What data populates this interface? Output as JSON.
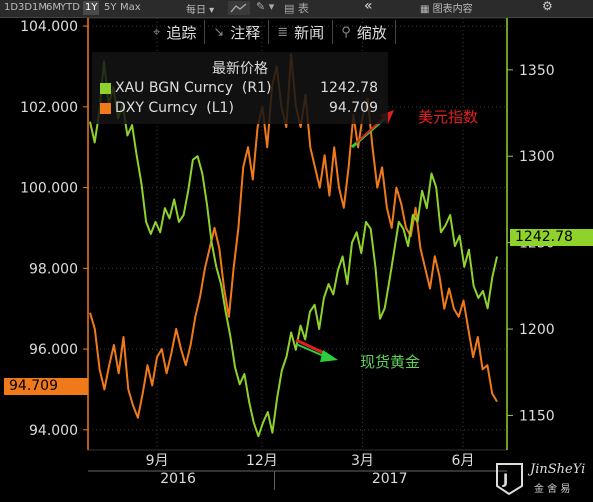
{
  "topbar": {
    "ranges": [
      "1D",
      "3D",
      "1M",
      "6M",
      "YTD",
      "1Y",
      "5Y",
      "Max"
    ],
    "active_range": "1Y",
    "period_label": "每日",
    "chart_label": "表",
    "news_label": "图表内容"
  },
  "toolbar": {
    "items": [
      {
        "icon": "crosshair-icon",
        "glyph": "⌖",
        "label": "追踪"
      },
      {
        "icon": "annotate-icon",
        "glyph": "↘",
        "label": "注释"
      },
      {
        "icon": "news-icon",
        "glyph": "≣",
        "label": "新闻"
      },
      {
        "icon": "zoom-icon",
        "glyph": "⚲",
        "label": "缩放"
      }
    ]
  },
  "legend": {
    "title": "最新价格",
    "rows": [
      {
        "name": "XAU BGN Curncy  (R1)",
        "value": "1242.78",
        "color": "#8fd22b"
      },
      {
        "name": "DXY Curncy  (L1)",
        "value": "94.709",
        "color": "#f07a1a"
      }
    ]
  },
  "annotations": {
    "dxy_label": "美元指数",
    "gold_label": "现货黄金"
  },
  "watermark": {
    "brand": "JinSheYi",
    "sub": "金 舍 易"
  },
  "chart_data": {
    "type": "line",
    "x_labels": [
      {
        "label": "9月",
        "t": 0.165
      },
      {
        "label": "12月",
        "t": 0.415
      },
      {
        "label": "3月",
        "t": 0.655
      },
      {
        "label": "6月",
        "t": 0.895
      }
    ],
    "year_labels": [
      {
        "label": "2016",
        "t": 0.215
      },
      {
        "label": "2017",
        "t": 0.72
      }
    ],
    "left_axis": {
      "ticks": [
        "104.000",
        "102.000",
        "100.000",
        "98.000",
        "96.000",
        "94.000"
      ],
      "min": 93.5,
      "max": 104.2,
      "color": "#f07a1a"
    },
    "right_axis": {
      "ticks": [
        "1350",
        "1300",
        "1250",
        "1200",
        "1150"
      ],
      "min": 1130,
      "max": 1380,
      "color": "#8fd22b"
    },
    "last_values": {
      "dxy": "94.709",
      "xau": "1242.78"
    },
    "series": [
      {
        "name": "DXY Curncy",
        "axis": "left",
        "color": "#f07a1a",
        "values": [
          96.9,
          96.5,
          95.5,
          95.0,
          95.6,
          96.1,
          95.4,
          96.3,
          95.0,
          94.6,
          94.3,
          94.9,
          95.6,
          95.1,
          95.8,
          96.0,
          95.4,
          95.9,
          96.5,
          96.0,
          95.6,
          96.1,
          96.8,
          97.3,
          98.0,
          98.5,
          99.0,
          98.5,
          97.5,
          96.8,
          98.0,
          99.0,
          100.5,
          101.0,
          100.2,
          101.5,
          102.0,
          101.0,
          102.5,
          103.0,
          102.0,
          101.5,
          103.3,
          102.0,
          101.5,
          102.3,
          101.0,
          100.5,
          100.0,
          100.8,
          99.8,
          101.0,
          100.0,
          99.5,
          100.5,
          101.8,
          101.0,
          101.8,
          102.2,
          101.0,
          100.0,
          100.5,
          99.5,
          99.0,
          100.0,
          99.6,
          99.0,
          98.8,
          99.5,
          98.5,
          98.0,
          97.5,
          98.3,
          97.8,
          97.0,
          97.5,
          97.0,
          96.8,
          97.2,
          96.5,
          95.8,
          96.3,
          95.5,
          95.6,
          94.9,
          94.7
        ]
      },
      {
        "name": "XAU BGN Curncy",
        "axis": "right",
        "color": "#8fd22b",
        "values": [
          1320,
          1308,
          1326,
          1355,
          1330,
          1340,
          1322,
          1330,
          1312,
          1318,
          1300,
          1284,
          1262,
          1255,
          1262,
          1256,
          1270,
          1264,
          1275,
          1262,
          1266,
          1280,
          1298,
          1300,
          1290,
          1272,
          1250,
          1236,
          1226,
          1210,
          1196,
          1178,
          1168,
          1174,
          1158,
          1146,
          1138,
          1146,
          1152,
          1140,
          1160,
          1176,
          1184,
          1198,
          1188,
          1202,
          1194,
          1210,
          1214,
          1200,
          1218,
          1226,
          1220,
          1234,
          1242,
          1226,
          1250,
          1256,
          1244,
          1262,
          1258,
          1236,
          1206,
          1212,
          1228,
          1245,
          1262,
          1258,
          1248,
          1266,
          1262,
          1280,
          1270,
          1290,
          1282,
          1256,
          1260,
          1266,
          1248,
          1254,
          1236,
          1246,
          1225,
          1218,
          1222,
          1212,
          1230,
          1242
        ]
      }
    ]
  }
}
